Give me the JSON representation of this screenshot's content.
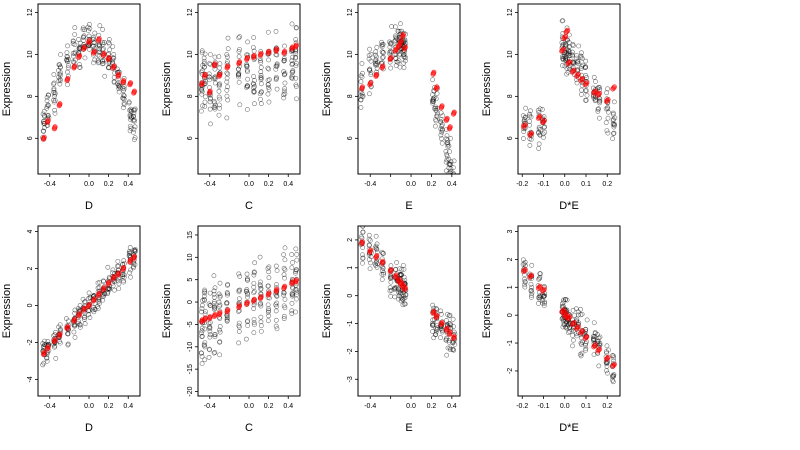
{
  "chart_data": [
    {
      "type": "scatter",
      "xlabel": "D",
      "ylabel": "Expression",
      "xlim": [
        -0.52,
        0.52
      ],
      "ylim": [
        4.3,
        12.4
      ],
      "xticks": [
        -0.4,
        -0.2,
        0.0,
        0.2,
        0.4
      ],
      "xtick_labels": [
        "-0.4",
        "",
        "0.0",
        "0.2",
        "0.4"
      ],
      "yticks": [
        6,
        8,
        10,
        12
      ],
      "ytick_labels": [
        "6",
        "8",
        "10",
        "12"
      ],
      "observed_color": "#000000",
      "fitted_color": "#ff0000",
      "fitted": {
        "x": [
          -0.46,
          -0.42,
          -0.35,
          -0.3,
          -0.22,
          -0.15,
          -0.1,
          -0.05,
          0.0,
          0.05,
          0.1,
          0.15,
          0.2,
          0.25,
          0.3,
          0.35,
          0.42,
          0.46
        ],
        "y": [
          6.0,
          6.8,
          6.5,
          7.6,
          8.8,
          9.4,
          9.9,
          10.3,
          10.6,
          10.1,
          10.7,
          10.0,
          9.8,
          9.4,
          9.0,
          8.7,
          8.6,
          8.2
        ]
      },
      "observed_pattern": {
        "kind": "quadratic",
        "a": 10.5,
        "b": -18,
        "noise": 0.8,
        "xcols": [
          -0.46,
          -0.42,
          -0.35,
          -0.3,
          -0.22,
          -0.15,
          -0.1,
          -0.05,
          0.0,
          0.05,
          0.1,
          0.15,
          0.2,
          0.25,
          0.3,
          0.35,
          0.42,
          0.46
        ],
        "per_col": 14,
        "jitter": 0.012
      }
    },
    {
      "type": "scatter",
      "xlabel": "C",
      "ylabel": "Expression",
      "xlim": [
        -0.52,
        0.52
      ],
      "ylim": [
        4.3,
        12.4
      ],
      "xticks": [
        -0.4,
        -0.2,
        0.0,
        0.2,
        0.4
      ],
      "xtick_labels": [
        "-0.4",
        "",
        "0.0",
        "0.2",
        "0.4"
      ],
      "yticks": [
        6,
        8,
        10,
        12
      ],
      "ytick_labels": [
        "6",
        "8",
        "10",
        "12"
      ],
      "observed_color": "#000000",
      "fitted_color": "#ff0000",
      "fitted": {
        "x": [
          -0.48,
          -0.45,
          -0.4,
          -0.35,
          -0.3,
          -0.22,
          -0.1,
          -0.02,
          0.05,
          0.12,
          0.2,
          0.28,
          0.36,
          0.44,
          0.48
        ],
        "y": [
          8.6,
          9.0,
          8.2,
          9.5,
          9.0,
          9.4,
          9.6,
          9.8,
          9.9,
          10.0,
          10.1,
          10.2,
          10.1,
          10.3,
          10.4
        ]
      },
      "observed_pattern": {
        "kind": "linear",
        "a": 9.2,
        "b": 1.2,
        "noise": 1.6,
        "xcols": [
          -0.48,
          -0.45,
          -0.4,
          -0.35,
          -0.3,
          -0.22,
          -0.1,
          -0.02,
          0.05,
          0.12,
          0.2,
          0.28,
          0.36,
          0.44,
          0.48
        ],
        "per_col": 16,
        "jitter": 0.008
      }
    },
    {
      "type": "scatter",
      "xlabel": "E",
      "ylabel": "Expression",
      "xlim": [
        -0.52,
        0.48
      ],
      "ylim": [
        4.3,
        12.4
      ],
      "xticks": [
        -0.4,
        -0.2,
        0.0,
        0.2,
        0.4
      ],
      "xtick_labels": [
        "-0.4",
        "",
        "0.0",
        "0.2",
        "0.4"
      ],
      "yticks": [
        6,
        8,
        10,
        12
      ],
      "ytick_labels": [
        "6",
        "8",
        "10",
        "12"
      ],
      "observed_color": "#000000",
      "fitted_color": "#ff0000",
      "fitted": {
        "x": [
          -0.48,
          -0.4,
          -0.34,
          -0.28,
          -0.2,
          -0.15,
          -0.12,
          -0.1,
          -0.08,
          -0.06,
          0.22,
          0.25,
          0.3,
          0.35,
          0.38,
          0.42
        ],
        "y": [
          8.4,
          8.6,
          9.0,
          9.4,
          9.8,
          10.2,
          10.4,
          10.6,
          10.9,
          10.3,
          9.1,
          8.4,
          7.5,
          6.9,
          6.5,
          7.2
        ]
      },
      "observed_pattern": {
        "kind": "quadratic",
        "a": 10.5,
        "b": -20,
        "c": -0.15,
        "noise": 0.9,
        "xcols": [
          -0.48,
          -0.4,
          -0.34,
          -0.28,
          -0.2,
          -0.15,
          -0.12,
          -0.1,
          -0.08,
          -0.06,
          0.22,
          0.25,
          0.3,
          0.35,
          0.38,
          0.42
        ],
        "per_col": 14,
        "jitter": 0.012
      }
    },
    {
      "type": "scatter",
      "xlabel": "D*E",
      "ylabel": "Expression",
      "xlim": [
        -0.22,
        0.26
      ],
      "ylim": [
        4.3,
        12.4
      ],
      "xticks": [
        -0.2,
        -0.1,
        0.0,
        0.1,
        0.2
      ],
      "xtick_labels": [
        "-0.2",
        "-0.1",
        "0.0",
        "0.1",
        "0.2"
      ],
      "yticks": [
        6,
        8,
        10,
        12
      ],
      "ytick_labels": [
        "6",
        "8",
        "10",
        "12"
      ],
      "observed_color": "#000000",
      "fitted_color": "#ff0000",
      "fitted": {
        "x": [
          -0.19,
          -0.16,
          -0.12,
          -0.1,
          -0.01,
          0.0,
          0.01,
          0.02,
          0.04,
          0.06,
          0.08,
          0.1,
          0.14,
          0.16,
          0.2,
          0.23
        ],
        "y": [
          6.6,
          6.2,
          7.0,
          6.8,
          10.2,
          10.8,
          11.1,
          9.6,
          9.2,
          9.0,
          8.8,
          8.6,
          8.2,
          8.1,
          7.8,
          8.4
        ]
      },
      "observed_pattern": {
        "kind": "peak",
        "a": 10.2,
        "noise": 1.0,
        "xcols": [
          -0.19,
          -0.16,
          -0.12,
          -0.1,
          -0.01,
          0.0,
          0.01,
          0.02,
          0.04,
          0.06,
          0.08,
          0.1,
          0.14,
          0.16,
          0.2,
          0.23
        ],
        "per_col": 14,
        "jitter": 0.006
      }
    },
    {
      "type": "scatter",
      "xlabel": "D",
      "ylabel": "Expression",
      "xlim": [
        -0.52,
        0.52
      ],
      "ylim": [
        -4.9,
        4.3
      ],
      "xticks": [
        -0.4,
        -0.2,
        0.0,
        0.2,
        0.4
      ],
      "xtick_labels": [
        "-0.4",
        "",
        "0.0",
        "0.2",
        "0.4"
      ],
      "yticks": [
        -4,
        -2,
        0,
        2,
        4
      ],
      "ytick_labels": [
        "-4",
        "-2",
        "0",
        "2",
        "4"
      ],
      "observed_color": "#000000",
      "fitted_color": "#ff0000",
      "fitted": {
        "x": [
          -0.46,
          -0.42,
          -0.35,
          -0.3,
          -0.22,
          -0.15,
          -0.1,
          -0.05,
          0.0,
          0.05,
          0.1,
          0.15,
          0.2,
          0.25,
          0.3,
          0.35,
          0.42,
          0.46
        ],
        "y": [
          -2.6,
          -2.3,
          -1.9,
          -1.6,
          -1.2,
          -0.8,
          -0.5,
          -0.2,
          0.0,
          0.3,
          0.6,
          0.9,
          1.2,
          1.5,
          1.7,
          2.0,
          2.4,
          2.6
        ]
      },
      "observed_pattern": {
        "kind": "linear",
        "a": 0.0,
        "b": 5.7,
        "noise": 0.7,
        "xcols": [
          -0.46,
          -0.42,
          -0.35,
          -0.3,
          -0.22,
          -0.15,
          -0.1,
          -0.05,
          0.0,
          0.05,
          0.1,
          0.15,
          0.2,
          0.25,
          0.3,
          0.35,
          0.42,
          0.46
        ],
        "per_col": 14,
        "jitter": 0.012
      }
    },
    {
      "type": "scatter",
      "xlabel": "C",
      "ylabel": "Expression",
      "xlim": [
        -0.52,
        0.52
      ],
      "ylim": [
        -21,
        17
      ],
      "xticks": [
        -0.4,
        -0.2,
        0.0,
        0.2,
        0.4
      ],
      "xtick_labels": [
        "-0.4",
        "",
        "0.0",
        "0.2",
        "0.4"
      ],
      "yticks": [
        -20,
        -15,
        -10,
        -5,
        0,
        5,
        10,
        15
      ],
      "ytick_labels": [
        "-20",
        "-15",
        "-10",
        "-5",
        "0",
        "5",
        "10",
        "15"
      ],
      "observed_color": "#000000",
      "fitted_color": "#ff0000",
      "fitted": {
        "x": [
          -0.48,
          -0.45,
          -0.4,
          -0.35,
          -0.3,
          -0.22,
          -0.1,
          -0.02,
          0.05,
          0.12,
          0.2,
          0.28,
          0.36,
          0.44,
          0.48
        ],
        "y": [
          -4.2,
          -3.8,
          -3.5,
          -3.0,
          -2.6,
          -2.0,
          -1.0,
          -0.3,
          0.4,
          1.0,
          1.8,
          2.6,
          3.3,
          4.3,
          4.7
        ]
      },
      "observed_pattern": {
        "kind": "linear",
        "a": 0.0,
        "b": 9.0,
        "noise": 7.0,
        "xcols": [
          -0.48,
          -0.45,
          -0.4,
          -0.35,
          -0.3,
          -0.22,
          -0.1,
          -0.02,
          0.05,
          0.12,
          0.2,
          0.28,
          0.36,
          0.44,
          0.48
        ],
        "per_col": 16,
        "jitter": 0.008
      }
    },
    {
      "type": "scatter",
      "xlabel": "E",
      "ylabel": "Expression",
      "xlim": [
        -0.52,
        0.48
      ],
      "ylim": [
        -3.6,
        2.5
      ],
      "xticks": [
        -0.4,
        -0.2,
        0.0,
        0.2,
        0.4
      ],
      "xtick_labels": [
        "-0.4",
        "",
        "0.0",
        "0.2",
        "0.4"
      ],
      "yticks": [
        -3,
        -2,
        -1,
        0,
        1,
        2
      ],
      "ytick_labels": [
        "-3",
        "-2",
        "-1",
        "0",
        "1",
        "2"
      ],
      "observed_color": "#000000",
      "fitted_color": "#ff0000",
      "fitted": {
        "x": [
          -0.48,
          -0.4,
          -0.34,
          -0.28,
          -0.2,
          -0.15,
          -0.12,
          -0.1,
          -0.08,
          -0.06,
          0.22,
          0.25,
          0.3,
          0.35,
          0.38,
          0.42
        ],
        "y": [
          1.9,
          1.6,
          1.4,
          1.2,
          0.9,
          0.7,
          0.55,
          0.45,
          0.35,
          0.25,
          -0.6,
          -0.75,
          -1.0,
          -1.2,
          -1.35,
          -1.5
        ]
      },
      "observed_pattern": {
        "kind": "linear",
        "a": 0.0,
        "b": -3.8,
        "noise": 0.6,
        "xcols": [
          -0.48,
          -0.4,
          -0.34,
          -0.28,
          -0.2,
          -0.15,
          -0.12,
          -0.1,
          -0.08,
          -0.06,
          0.22,
          0.25,
          0.3,
          0.35,
          0.38,
          0.42
        ],
        "per_col": 14,
        "jitter": 0.012
      }
    },
    {
      "type": "scatter",
      "xlabel": "D*E",
      "ylabel": "Expression",
      "xlim": [
        -0.22,
        0.26
      ],
      "ylim": [
        -2.9,
        3.2
      ],
      "xticks": [
        -0.2,
        -0.1,
        0.0,
        0.1,
        0.2
      ],
      "xtick_labels": [
        "-0.2",
        "-0.1",
        "0.0",
        "0.1",
        "0.2"
      ],
      "yticks": [
        -2,
        -1,
        0,
        1,
        2,
        3
      ],
      "ytick_labels": [
        "-2",
        "-1",
        "0",
        "1",
        "2",
        "3"
      ],
      "observed_color": "#000000",
      "fitted_color": "#ff0000",
      "fitted": {
        "x": [
          -0.19,
          -0.16,
          -0.12,
          -0.1,
          -0.01,
          0.0,
          0.01,
          0.02,
          0.04,
          0.06,
          0.08,
          0.1,
          0.14,
          0.16,
          0.2,
          0.23
        ],
        "y": [
          1.6,
          1.4,
          1.0,
          0.9,
          0.15,
          0.05,
          -0.05,
          -0.1,
          -0.3,
          -0.45,
          -0.6,
          -0.8,
          -1.1,
          -1.25,
          -1.55,
          -1.8
        ]
      },
      "observed_pattern": {
        "kind": "linear",
        "a": 0.0,
        "b": -8.0,
        "noise": 0.6,
        "xcols": [
          -0.19,
          -0.16,
          -0.12,
          -0.1,
          -0.01,
          0.0,
          0.01,
          0.02,
          0.04,
          0.06,
          0.08,
          0.1,
          0.14,
          0.16,
          0.2,
          0.23
        ],
        "per_col": 14,
        "jitter": 0.006
      }
    }
  ]
}
